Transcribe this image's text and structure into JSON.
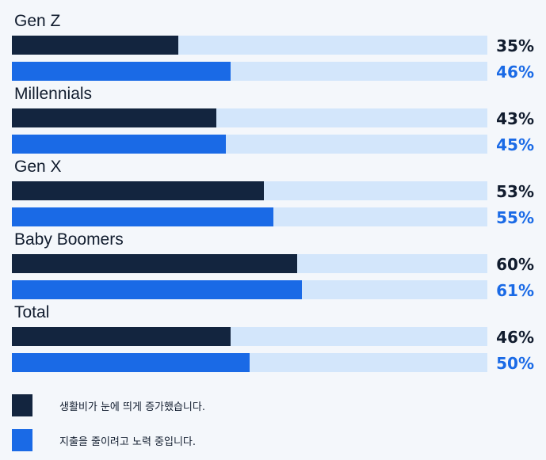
{
  "chart_data": {
    "type": "bar",
    "orientation": "horizontal",
    "categories": [
      "Gen Z",
      "Millennials",
      "Gen X",
      "Baby Boomers",
      "Total"
    ],
    "series": [
      {
        "name": "생활비가 눈에 띄게 증가했습니다.",
        "values": [
          35,
          43,
          53,
          60,
          46
        ],
        "labels": [
          "35%",
          "43%",
          "53%",
          "60%",
          "46%"
        ],
        "color": "#13253f"
      },
      {
        "name": "지출을 줄이려고 노력 중입니다.",
        "values": [
          46,
          45,
          55,
          61,
          50
        ],
        "labels": [
          "46%",
          "45%",
          "55%",
          "61%",
          "50%"
        ],
        "color": "#1a6ae6"
      }
    ],
    "xlim": [
      0,
      100
    ],
    "grid": false,
    "legend_position": "bottom-left",
    "track_color": "#d3e6fb"
  }
}
